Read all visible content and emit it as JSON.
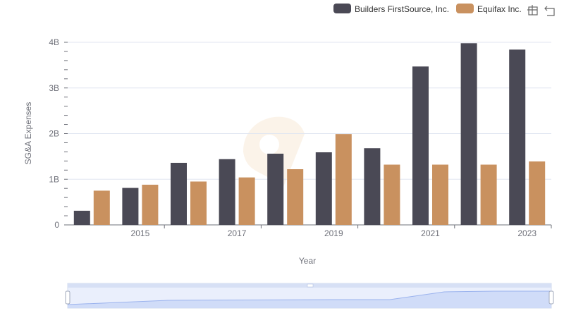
{
  "chart_data": {
    "type": "bar",
    "x": [
      2014,
      2015,
      2016,
      2017,
      2018,
      2019,
      2020,
      2021,
      2022,
      2023
    ],
    "x_tick_labels": [
      "2015",
      "2017",
      "2019",
      "2021",
      "2023"
    ],
    "series": [
      {
        "name": "Builders FirstSource, Inc.",
        "color": "#4a4955",
        "values": [
          310000000,
          810000000,
          1360000000,
          1440000000,
          1560000000,
          1590000000,
          1680000000,
          3470000000,
          3980000000,
          3840000000
        ]
      },
      {
        "name": "Equifax Inc.",
        "color": "#c9915f",
        "values": [
          750000000,
          880000000,
          950000000,
          1040000000,
          1220000000,
          1990000000,
          1320000000,
          1320000000,
          1320000000,
          1390000000
        ]
      }
    ],
    "xlabel": "Year",
    "ylabel": "SG&A Expenses",
    "y_ticks": [
      0,
      1000000000,
      2000000000,
      3000000000,
      4000000000
    ],
    "y_tick_labels": [
      "0",
      "1B",
      "2B",
      "3B",
      "4B"
    ],
    "ylim": [
      0,
      4000000000
    ],
    "grid": true,
    "legend_position": "top-right",
    "toolbox_icons": [
      "zoom-icon",
      "restore-icon"
    ]
  }
}
